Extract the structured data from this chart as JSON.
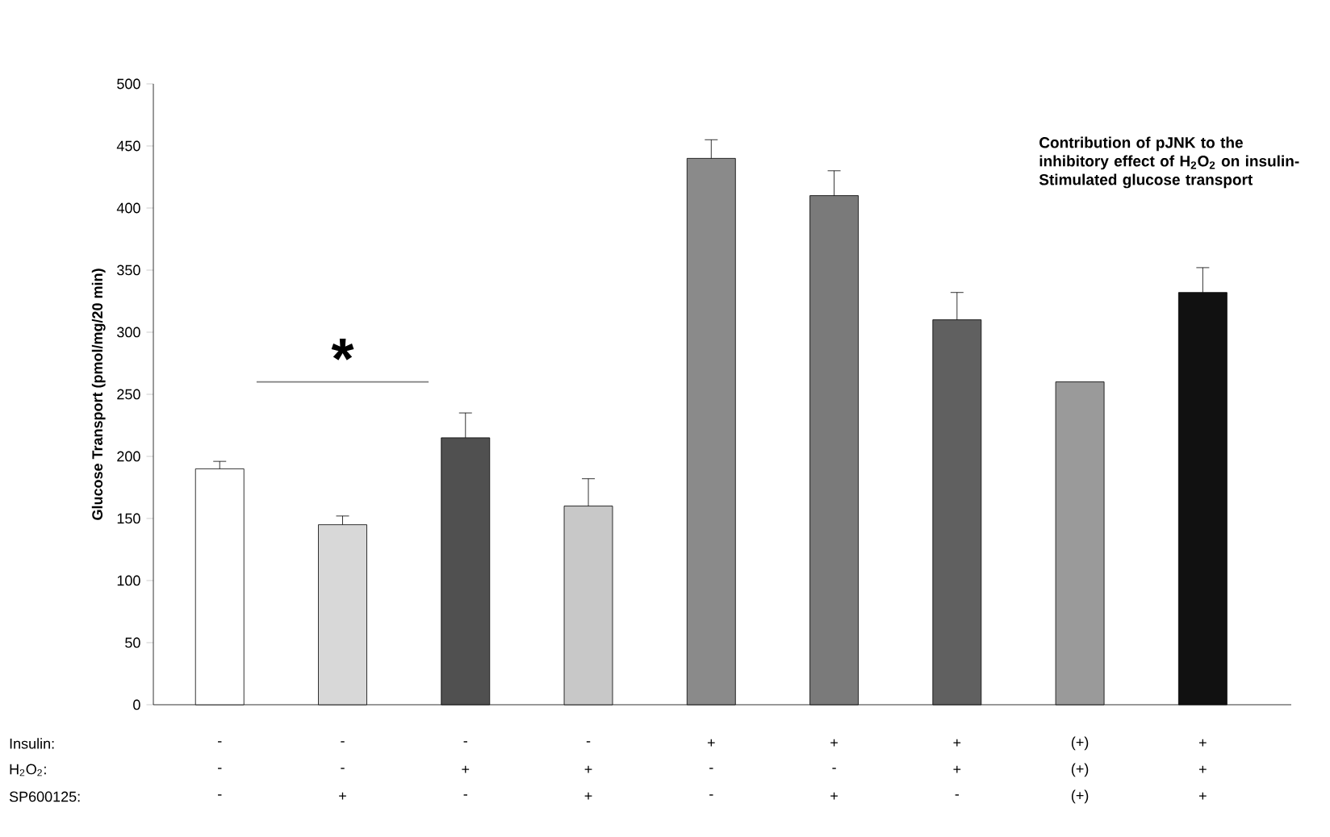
{
  "chart_data": {
    "type": "bar",
    "ylabel": "Glucose Transport (pmol/mg/20 min)",
    "categories": [
      null,
      null,
      null,
      null,
      null,
      null,
      null,
      null,
      null
    ],
    "values": [
      190,
      145,
      215,
      160,
      440,
      410,
      310,
      260,
      332
    ],
    "errors": [
      6,
      7,
      20,
      22,
      15,
      20,
      22,
      null,
      20
    ],
    "colors": [
      "#ffffff",
      "#d8d8d8",
      "#505050",
      "#c8c8c8",
      "#8a8a8a",
      "#7a7a7a",
      "#606060",
      "#9a9a9a",
      "#111111"
    ],
    "ylim": [
      0,
      500
    ],
    "yticks": [
      0,
      50,
      100,
      150,
      200,
      250,
      300,
      350,
      400,
      450,
      500
    ],
    "grid": false,
    "annotations": [
      "*",
      "Contribution of pJNK to the inhibitory effect of H$_{2}$O$_{2}$ on insulin-Stimulated glucose transport",
      "Insulin:",
      "-",
      "-",
      "-",
      "-",
      "+",
      "+",
      "+",
      "(+)",
      "+",
      "H$_{2}$O$_{2}$:",
      "-",
      "-",
      "+",
      "+",
      "-",
      "-",
      "+",
      "(+)",
      "+",
      "SP600125:",
      "-",
      "+",
      "-",
      "+",
      "-",
      "+",
      "-",
      "(+)",
      "+"
    ]
  }
}
